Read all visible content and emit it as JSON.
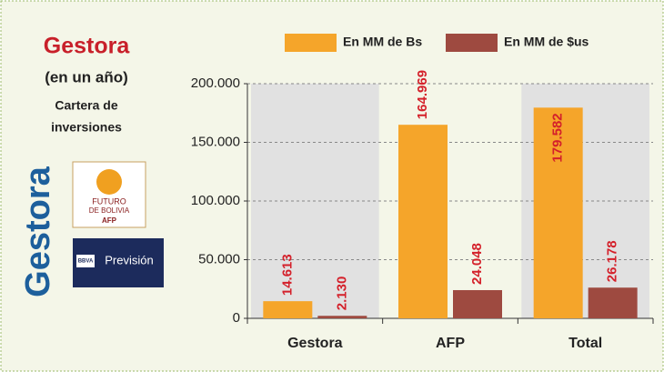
{
  "header": {
    "title": "Gestora",
    "subtitle": "(en un año)",
    "caption": [
      "Cartera de",
      "inversiones"
    ]
  },
  "logos": {
    "gestora": "Gestora",
    "futuro": [
      "FUTURO",
      "DE BOLIVIA",
      "AFP"
    ],
    "prevision": [
      "BBVA",
      "Previsión"
    ]
  },
  "chart_data": {
    "type": "bar",
    "categories": [
      "Gestora",
      "AFP",
      "Total"
    ],
    "series": [
      {
        "name": "En MM de Bs",
        "color": "#f5a52a",
        "values": [
          14613,
          164969,
          179582
        ],
        "value_labels": [
          "14.613",
          "164.969",
          "179.582"
        ]
      },
      {
        "name": "En MM de $us",
        "color": "#9e4a40",
        "values": [
          2130,
          24048,
          26178
        ],
        "value_labels": [
          "2.130",
          "24.048",
          "26.178"
        ]
      }
    ],
    "ylim": [
      0,
      200000
    ],
    "yticks": [
      0,
      {
        "value": 50000,
        "label": "50.000"
      },
      {
        "value": 100000,
        "label": "100.000"
      },
      {
        "value": 150000,
        "label": "150.000"
      },
      {
        "value": 200000,
        "label": "200.000"
      }
    ],
    "grid": true,
    "legend": "top",
    "value_label_color": "#d4202a"
  }
}
